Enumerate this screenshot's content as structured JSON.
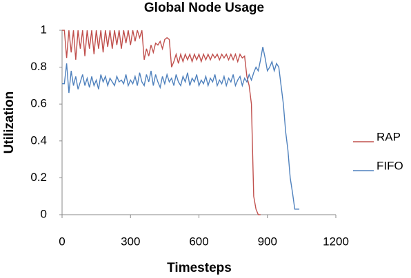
{
  "chart_data": {
    "type": "line",
    "title": "Global Node Usage",
    "x_label": "Timesteps",
    "y_label": "Utilization",
    "x": [
      0,
      10,
      20,
      30,
      40,
      50,
      60,
      70,
      80,
      90,
      100,
      110,
      120,
      130,
      140,
      150,
      160,
      170,
      180,
      190,
      200,
      210,
      220,
      230,
      240,
      250,
      260,
      270,
      280,
      290,
      300,
      310,
      320,
      330,
      340,
      350,
      360,
      370,
      380,
      390,
      400,
      410,
      420,
      430,
      440,
      450,
      460,
      470,
      480,
      490,
      500,
      510,
      520,
      530,
      540,
      550,
      560,
      570,
      580,
      590,
      600,
      610,
      620,
      630,
      640,
      650,
      660,
      670,
      680,
      690,
      700,
      710,
      720,
      730,
      740,
      750,
      760,
      770,
      780,
      790,
      800,
      810,
      820,
      830,
      840,
      850,
      860,
      870,
      880,
      890,
      900,
      910,
      920,
      930,
      940,
      950,
      960,
      970,
      980,
      990,
      1000,
      1010,
      1020,
      1030,
      1040
    ],
    "series": [
      {
        "name": "RAP",
        "color": "#c0504d",
        "values": [
          1,
          1,
          0.85,
          1,
          0.88,
          1,
          0.84,
          1,
          0.9,
          1,
          0.86,
          1,
          0.9,
          1,
          0.87,
          1,
          0.9,
          1,
          0.88,
          1,
          0.91,
          1,
          0.9,
          1,
          0.92,
          1,
          0.9,
          1,
          0.93,
          1,
          0.92,
          1,
          0.94,
          1,
          0.96,
          1,
          0.84,
          0.9,
          0.86,
          0.92,
          0.88,
          0.93,
          0.92,
          0.94,
          0.9,
          0.95,
          0.96,
          0.95,
          0.8,
          0.83,
          0.87,
          0.82,
          0.87,
          0.83,
          0.87,
          0.84,
          0.87,
          0.83,
          0.87,
          0.84,
          0.87,
          0.83,
          0.87,
          0.84,
          0.87,
          0.84,
          0.87,
          0.85,
          0.87,
          0.84,
          0.87,
          0.85,
          0.87,
          0.84,
          0.87,
          0.84,
          0.87,
          0.83,
          0.87,
          0.85,
          0.86,
          0.75,
          0.7,
          0.6,
          0.1,
          0.03,
          0,
          0,
          null,
          null,
          null,
          null,
          null,
          null,
          null,
          null,
          null,
          null,
          null,
          null,
          null,
          null,
          null,
          null,
          null
        ]
      },
      {
        "name": "FIFO",
        "color": "#4f81bd",
        "values": [
          0.71,
          0.71,
          0.82,
          0.66,
          0.78,
          0.7,
          0.75,
          0.68,
          0.72,
          0.76,
          0.7,
          0.74,
          0.69,
          0.75,
          0.7,
          0.73,
          0.68,
          0.76,
          0.72,
          0.75,
          0.7,
          0.74,
          0.72,
          0.7,
          0.75,
          0.72,
          0.73,
          0.71,
          0.76,
          0.7,
          0.73,
          0.71,
          0.75,
          0.7,
          0.77,
          0.72,
          0.7,
          0.76,
          0.72,
          0.78,
          0.7,
          0.76,
          0.72,
          0.69,
          0.75,
          0.71,
          0.76,
          0.72,
          0.74,
          0.7,
          0.76,
          0.72,
          0.7,
          0.75,
          0.72,
          0.77,
          0.7,
          0.74,
          0.72,
          0.76,
          0.7,
          0.73,
          0.71,
          0.75,
          0.7,
          0.74,
          0.72,
          0.76,
          0.7,
          0.73,
          0.71,
          0.75,
          0.7,
          0.74,
          0.72,
          0.76,
          0.7,
          0.73,
          0.75,
          0.7,
          0.74,
          0.72,
          0.76,
          0.73,
          0.77,
          0.8,
          0.78,
          0.84,
          0.91,
          0.85,
          0.78,
          0.8,
          0.83,
          0.78,
          0.82,
          0.8,
          0.7,
          0.6,
          0.45,
          0.35,
          0.2,
          0.12,
          0.03,
          0.03,
          0.03
        ]
      }
    ],
    "xlim": [
      0,
      1200
    ],
    "xticks": [
      0,
      300,
      600,
      900,
      1200
    ],
    "ylim": [
      0,
      1
    ],
    "yticks": [
      0,
      0.2,
      0.4,
      0.6,
      0.8,
      1
    ],
    "grid": false,
    "legend": "right"
  }
}
